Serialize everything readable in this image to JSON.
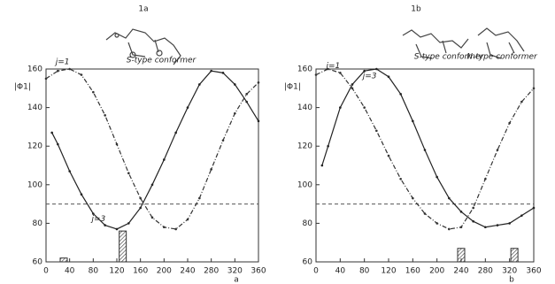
{
  "chart_data": [
    {
      "type": "line",
      "title": "1a",
      "ylabel": "|Φ1|",
      "xlabel": "a",
      "annotation": "S-type conformer",
      "xlim": [
        0,
        360
      ],
      "xticks": [
        0,
        40,
        80,
        120,
        160,
        200,
        240,
        280,
        320,
        360
      ],
      "ylim": [
        60,
        160
      ],
      "yticks": [
        60,
        80,
        100,
        120,
        140,
        160
      ],
      "reference_line": 90,
      "series": [
        {
          "name": "j=1",
          "color": "#333",
          "dashed": true,
          "x": [
            0,
            20,
            40,
            60,
            80,
            100,
            120,
            140,
            160,
            180,
            200,
            220,
            240,
            260,
            280,
            300,
            320,
            340,
            360
          ],
          "values": [
            155,
            159,
            160,
            157,
            148,
            136,
            121,
            106,
            93,
            83,
            78,
            77,
            82,
            93,
            108,
            123,
            137,
            147,
            153
          ]
        },
        {
          "name": "j=3",
          "color": "#222",
          "dashed": false,
          "x": [
            10,
            20,
            40,
            60,
            80,
            100,
            120,
            140,
            160,
            180,
            200,
            220,
            240,
            260,
            280,
            300,
            320,
            340,
            360
          ],
          "values": [
            127,
            121,
            107,
            95,
            85,
            79,
            77,
            80,
            88,
            100,
            113,
            127,
            140,
            152,
            159,
            158,
            152,
            143,
            133
          ]
        }
      ],
      "bars": {
        "x": [
          30,
          130
        ],
        "values": [
          62,
          76
        ]
      }
    },
    {
      "type": "line",
      "title": "1b",
      "ylabel": "|Φ1|",
      "xlabel": "b",
      "annotation": "S-type conformer",
      "annotation2": "N-type conformer",
      "xlim": [
        0,
        360
      ],
      "xticks": [
        0,
        40,
        80,
        120,
        160,
        200,
        240,
        280,
        320,
        360
      ],
      "ylim": [
        60,
        160
      ],
      "yticks": [
        60,
        80,
        100,
        120,
        140,
        160
      ],
      "reference_line": 90,
      "series": [
        {
          "name": "j=1",
          "color": "#333",
          "dashed": true,
          "x": [
            0,
            20,
            40,
            60,
            80,
            100,
            120,
            140,
            160,
            180,
            200,
            220,
            240,
            260,
            280,
            300,
            320,
            340,
            360
          ],
          "values": [
            157,
            160,
            158,
            150,
            140,
            128,
            115,
            103,
            93,
            85,
            80,
            77,
            78,
            88,
            103,
            118,
            132,
            143,
            150
          ]
        },
        {
          "name": "j=3",
          "color": "#222",
          "dashed": false,
          "x": [
            10,
            20,
            40,
            60,
            80,
            100,
            120,
            140,
            160,
            180,
            200,
            220,
            240,
            260,
            280,
            300,
            320,
            340,
            360
          ],
          "values": [
            110,
            120,
            140,
            152,
            159,
            160,
            156,
            147,
            133,
            118,
            104,
            93,
            86,
            81,
            78,
            79,
            80,
            84,
            88
          ]
        }
      ],
      "bars": {
        "x": [
          240,
          328
        ],
        "values": [
          67,
          67
        ]
      }
    }
  ]
}
